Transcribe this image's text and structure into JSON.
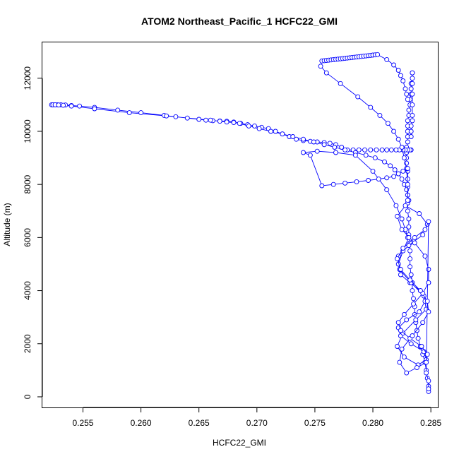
{
  "chart_data": {
    "type": "scatter",
    "title": "ATOM2 Northeast_Pacific_1 HCFC22_GMI",
    "xlabel": "HCFC22_GMI",
    "ylabel": "Altitude (m)",
    "xlim": [
      0.2515,
      0.2856
    ],
    "ylim": [
      -400,
      13350
    ],
    "x_ticks": [
      0.255,
      0.26,
      0.265,
      0.27,
      0.275,
      0.28,
      0.285
    ],
    "x_tick_labels": [
      "0.255",
      "0.260",
      "0.265",
      "0.270",
      "0.275",
      "0.280",
      "0.285"
    ],
    "y_ticks": [
      0,
      2000,
      4000,
      6000,
      8000,
      10000,
      12000
    ],
    "y_tick_labels": [
      "0",
      "2000",
      "4000",
      "6000",
      "8000",
      "10000",
      "12000"
    ],
    "grid": false,
    "legend": "none",
    "series_style": {
      "color": "#0000ff",
      "marker": "open-circle",
      "line": "solid"
    },
    "series": [
      {
        "x": [
          0.2848,
          0.2848,
          0.2847,
          0.2846,
          0.2845,
          0.2843,
          0.2841,
          0.2839,
          0.2838,
          0.2837,
          0.2836,
          0.2836,
          0.2835,
          0.2834,
          0.2834,
          0.2833,
          0.2832,
          0.2832,
          0.2832,
          0.2832,
          0.2831,
          0.2831,
          0.2831,
          0.283,
          0.283,
          0.283,
          0.283,
          0.283,
          0.283,
          0.2829,
          0.2829,
          0.2829,
          0.2829,
          0.283,
          0.283,
          0.283,
          0.283,
          0.283,
          0.2831,
          0.2831,
          0.2832,
          0.2832,
          0.2833,
          0.2833,
          0.2833,
          0.2834,
          0.2834,
          0.2834,
          0.2834,
          0.2834,
          0.2834,
          0.2834,
          0.2834,
          0.2833,
          0.2833,
          0.2833
        ],
        "y": [
          200,
          400,
          700,
          1000,
          1300,
          1600,
          1900,
          2200,
          2500,
          2800,
          3100,
          3400,
          3700,
          4000,
          4300,
          4600,
          4900,
          5200,
          5500,
          5800,
          6100,
          6400,
          6700,
          7000,
          7300,
          7600,
          7900,
          8200,
          8500,
          8800,
          9000,
          9200,
          9400,
          9600,
          9800,
          10000,
          10200,
          10400,
          10600,
          10800,
          11000,
          11200,
          11400,
          11600,
          11800,
          12000,
          12200,
          12200,
          11800,
          11400,
          11000,
          10600,
          10400,
          10200,
          10000,
          9800
        ]
      },
      {
        "x": [
          0.2833,
          0.2832,
          0.283,
          0.2828,
          0.2826,
          0.2823,
          0.282,
          0.2816,
          0.2812,
          0.2808,
          0.2803,
          0.2798,
          0.2793,
          0.2788,
          0.2783,
          0.2778,
          0.2773,
          0.2768,
          0.2763,
          0.2758,
          0.2752,
          0.2746,
          0.274,
          0.2734,
          0.2728,
          0.2722,
          0.2716,
          0.271,
          0.2704,
          0.2698,
          0.2692,
          0.2686,
          0.268,
          0.2674,
          0.2668,
          0.2662,
          0.2656,
          0.265,
          0.264,
          0.263,
          0.262,
          0.26,
          0.258,
          0.256,
          0.2547,
          0.254,
          0.2535,
          0.2531,
          0.2528,
          0.2526,
          0.2524,
          0.2523,
          0.2524,
          0.2526,
          0.2529,
          0.2533,
          0.254,
          0.256,
          0.259,
          0.2622,
          0.266,
          0.2668,
          0.2674,
          0.268,
          0.2685,
          0.2693,
          0.2702,
          0.2712,
          0.2722,
          0.2731,
          0.274,
          0.2749,
          0.2758,
          0.2767,
          0.2776,
          0.2785,
          0.2794,
          0.2802,
          0.281,
          0.2815,
          0.2819,
          0.2822,
          0.2825,
          0.2827,
          0.2829,
          0.283,
          0.2831
        ],
        "y": [
          9300,
          9300,
          9300,
          9300,
          9300,
          9300,
          9300,
          9300,
          9300,
          9300,
          9300,
          9300,
          9300,
          9300,
          9300,
          9300,
          9400,
          9500,
          9550,
          9580,
          9600,
          9620,
          9650,
          9700,
          9800,
          9900,
          10000,
          10100,
          10150,
          10200,
          10250,
          10300,
          10350,
          10380,
          10390,
          10400,
          10420,
          10450,
          10500,
          10550,
          10600,
          10700,
          10800,
          10900,
          10950,
          10970,
          10990,
          11000,
          11000,
          11000,
          11000,
          11000,
          11000,
          11000,
          10990,
          10980,
          10950,
          10850,
          10700,
          10580,
          10420,
          10380,
          10350,
          10330,
          10300,
          10200,
          10100,
          10000,
          9900,
          9800,
          9700,
          9600,
          9500,
          9400,
          9300,
          9200,
          9100,
          9000,
          8850,
          8700,
          8550,
          8400,
          8200,
          8000,
          7800,
          7600,
          7400
        ]
      },
      {
        "x": [
          0.283,
          0.283,
          0.2829,
          0.2827,
          0.2825,
          0.2822,
          0.2818,
          0.2813,
          0.2806,
          0.2798,
          0.2787,
          0.2772,
          0.276,
          0.2755,
          0.2756,
          0.2758,
          0.276,
          0.2762,
          0.2764,
          0.2766,
          0.2768,
          0.277,
          0.2772,
          0.2774,
          0.2776,
          0.2778,
          0.278,
          0.2782,
          0.2784,
          0.2786,
          0.2788,
          0.279,
          0.2792,
          0.2794,
          0.2796,
          0.2798,
          0.28,
          0.2802,
          0.2804,
          0.2812,
          0.2818,
          0.2822,
          0.2824,
          0.2826,
          0.2828,
          0.2829,
          0.283
        ],
        "y": [
          7400,
          8000,
          8600,
          9000,
          9400,
          9700,
          10000,
          10300,
          10600,
          10900,
          11300,
          11800,
          12200,
          12450,
          12650,
          12660,
          12670,
          12680,
          12690,
          12700,
          12710,
          12720,
          12730,
          12740,
          12750,
          12760,
          12770,
          12780,
          12790,
          12800,
          12810,
          12820,
          12830,
          12840,
          12850,
          12860,
          12870,
          12880,
          12890,
          12700,
          12500,
          12300,
          12100,
          11900,
          11600,
          11400,
          11200
        ]
      },
      {
        "x": [
          0.283,
          0.2826,
          0.2822,
          0.2818,
          0.2812,
          0.2805,
          0.2796,
          0.2786,
          0.2776,
          0.2766,
          0.2756,
          0.2746,
          0.274,
          0.2752,
          0.2768,
          0.2785,
          0.28,
          0.2812,
          0.282,
          0.2825,
          0.2828,
          0.283
        ],
        "y": [
          8600,
          8500,
          8400,
          8300,
          8250,
          8200,
          8150,
          8100,
          8050,
          8000,
          7950,
          9100,
          9200,
          9250,
          9200,
          9100,
          8500,
          7800,
          7200,
          6700,
          6300,
          6000
        ]
      },
      {
        "x": [
          0.2831,
          0.2826,
          0.2822,
          0.2824,
          0.2832,
          0.2841,
          0.2845,
          0.284,
          0.2829,
          0.2822,
          0.2824,
          0.2833,
          0.2844,
          0.2846,
          0.2839,
          0.2827,
          0.2821,
          0.2826,
          0.2837,
          0.2846,
          0.2844,
          0.2833,
          0.2823,
          0.2822,
          0.2831,
          0.2843,
          0.2847,
          0.284,
          0.2828,
          0.2821,
          0.2825,
          0.2836,
          0.2845,
          0.2848,
          0.2848
        ],
        "y": [
          6000,
          5500,
          5000,
          4600,
          4300,
          4000,
          3600,
          3200,
          2900,
          2600,
          2300,
          2000,
          1700,
          1400,
          1200,
          1500,
          1900,
          2400,
          2900,
          3300,
          3800,
          4300,
          4800,
          5300,
          5700,
          6100,
          6500,
          6900,
          7200,
          6800,
          6300,
          5800,
          5300,
          4800,
          4300
        ]
      },
      {
        "x": [
          0.2848,
          0.2843,
          0.2835,
          0.2827,
          0.2822,
          0.2824,
          0.2832,
          0.2842,
          0.2847,
          0.2846,
          0.2838,
          0.2829,
          0.2823,
          0.2825,
          0.2834,
          0.2843,
          0.2848,
          0.2847,
          0.2841,
          0.2832,
          0.2824,
          0.2821,
          0.2826,
          0.2836,
          0.2845,
          0.2848,
          0.2846,
          0.2848,
          0.2848
        ],
        "y": [
          4300,
          3900,
          3500,
          3100,
          2800,
          2500,
          2200,
          1900,
          1600,
          1300,
          1100,
          900,
          1300,
          1800,
          2300,
          2800,
          3200,
          3600,
          4000,
          4400,
          4800,
          5200,
          5600,
          6000,
          6300,
          6600,
          900,
          600,
          300
        ]
      }
    ]
  }
}
